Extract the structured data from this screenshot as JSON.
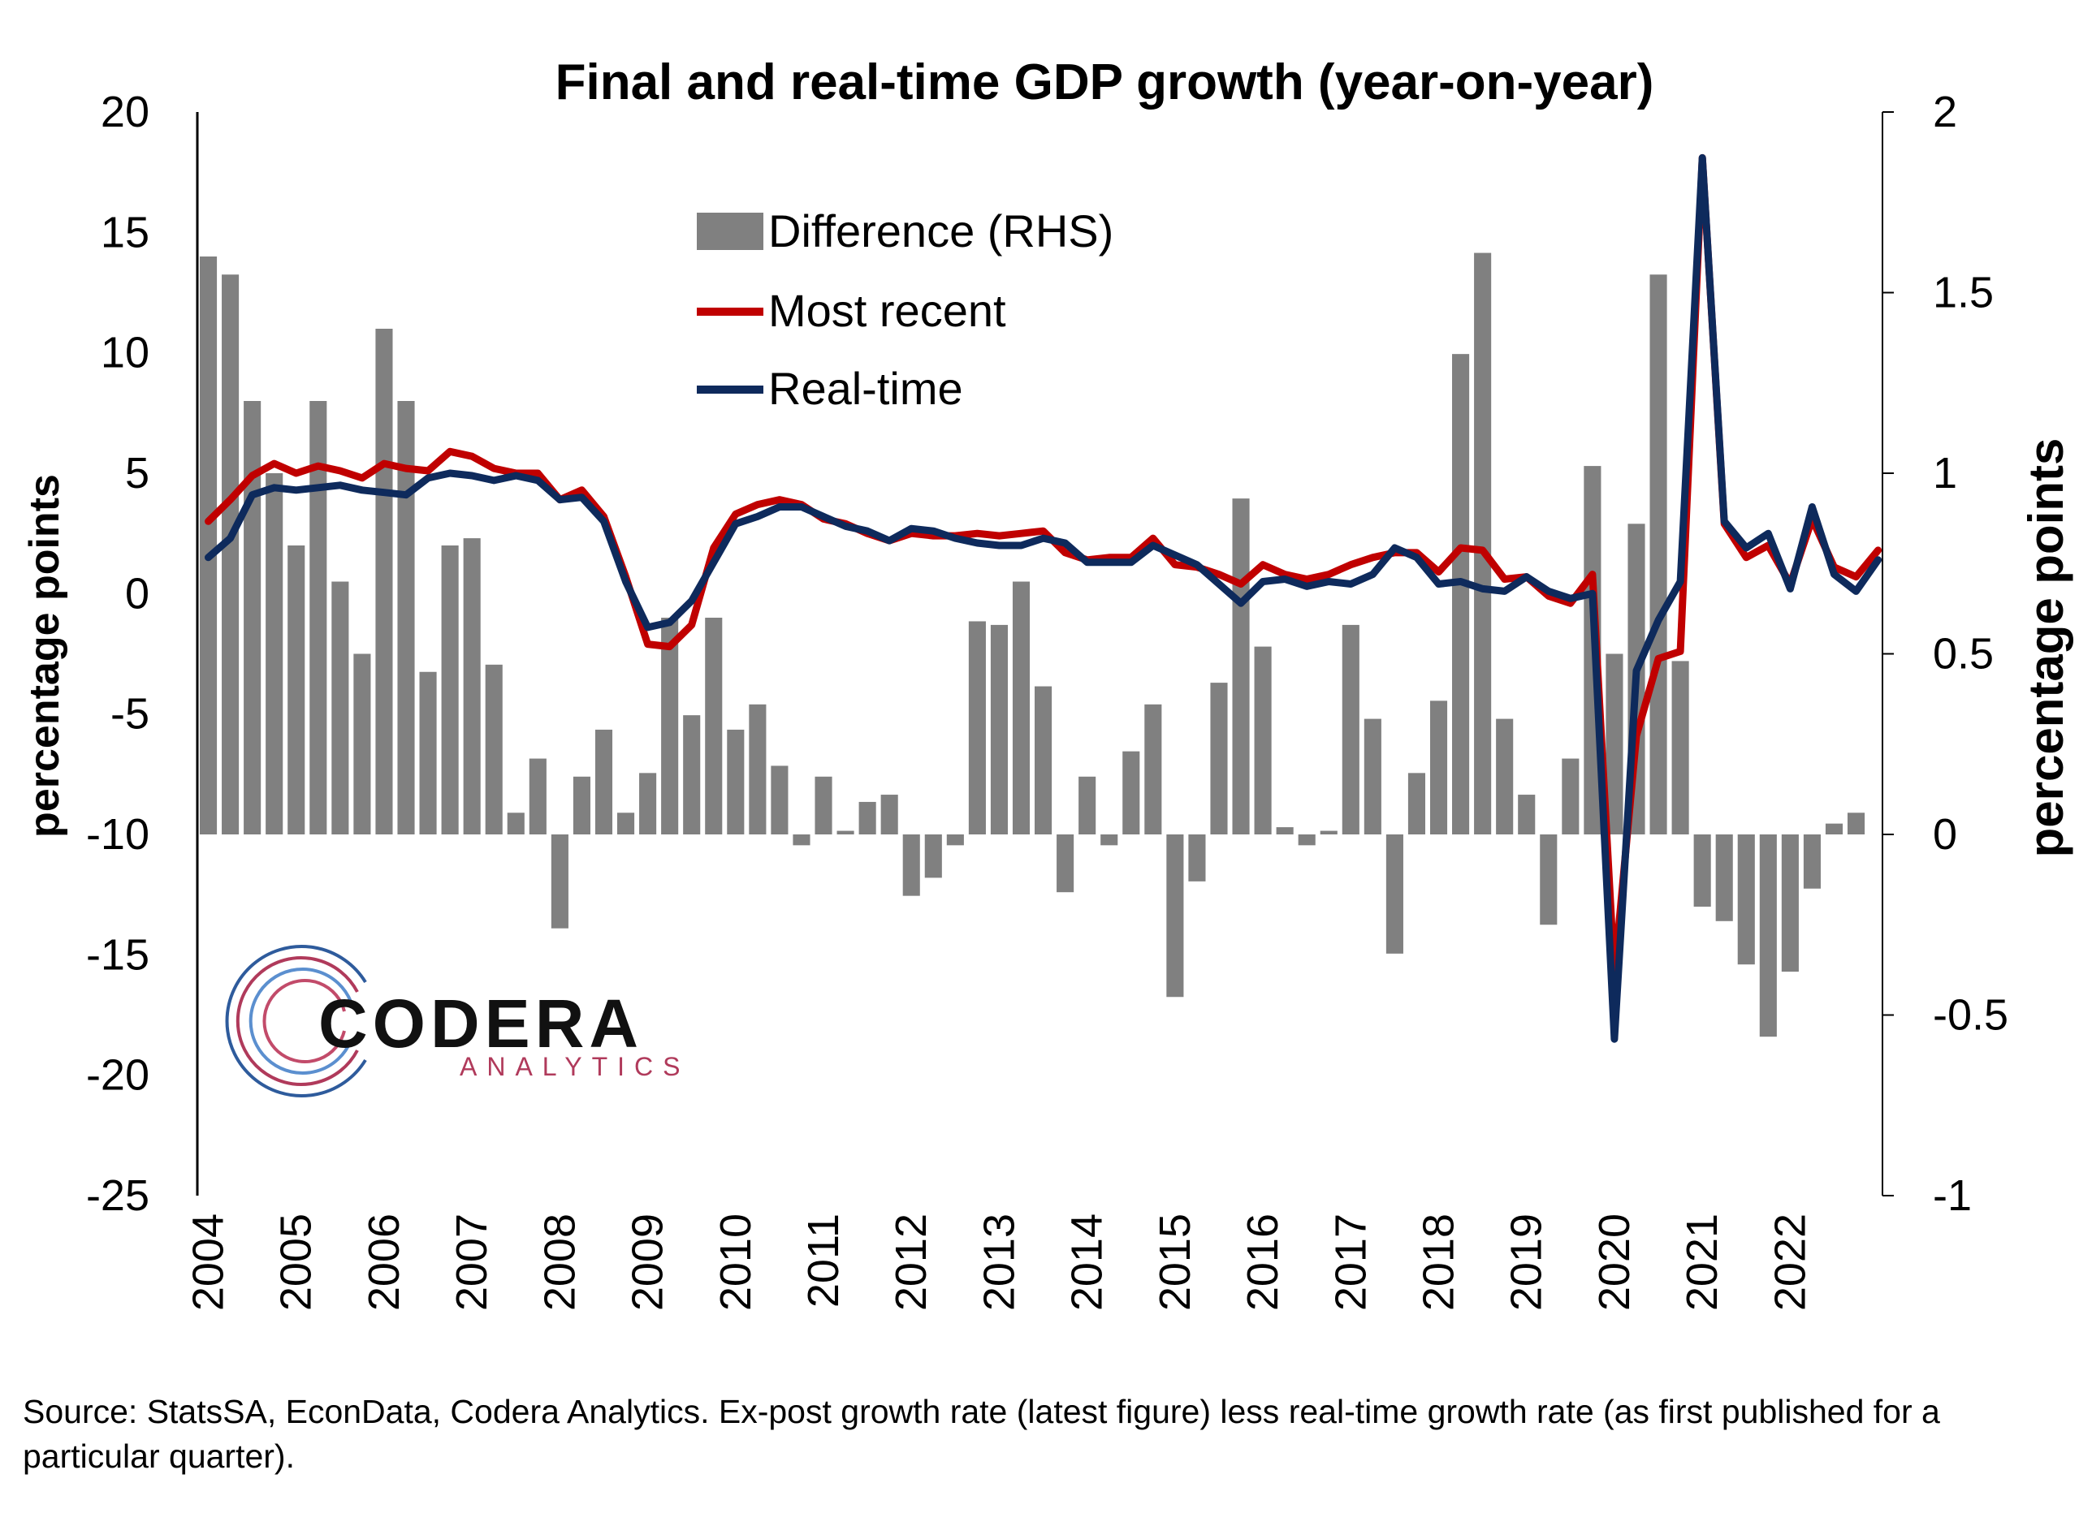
{
  "chart_data": {
    "type": "bar+line",
    "title": "Final and real-time GDP growth (year-on-year)",
    "ylabel": "percentage points",
    "y2label": "percentage points",
    "ylim": [
      -25,
      20
    ],
    "y2lim": [
      -1,
      2
    ],
    "y_ticks": [
      "20",
      "15",
      "10",
      "5",
      "0",
      "-5",
      "-10",
      "-15",
      "-20",
      "-25"
    ],
    "y2_ticks": [
      "2",
      "1.5",
      "1",
      "0.5",
      "0",
      "-0.5",
      "-1"
    ],
    "x_ticks": [
      "2004",
      "2005",
      "2006",
      "2007",
      "2008",
      "2009",
      "2010",
      "2011",
      "2012",
      "2013",
      "2014",
      "2015",
      "2016",
      "2017",
      "2018",
      "2019",
      "2020",
      "2021",
      "2022"
    ],
    "x_start": "2004Q1",
    "legend_placement": "top-center",
    "colors": {
      "difference": "#808080",
      "most_recent": "#c00000",
      "real_time": "#0e2a5c"
    },
    "series": [
      {
        "name": "Difference (RHS)",
        "axis": "right",
        "type": "bar",
        "values": [
          1.6,
          1.55,
          1.2,
          1.0,
          0.8,
          1.2,
          0.7,
          0.5,
          1.4,
          1.2,
          0.45,
          0.8,
          0.82,
          0.47,
          0.06,
          0.21,
          -0.26,
          0.16,
          0.29,
          0.06,
          0.17,
          0.6,
          0.33,
          0.6,
          0.29,
          0.36,
          0.19,
          -0.03,
          0.16,
          0.01,
          0.09,
          0.11,
          -0.17,
          -0.12,
          -0.03,
          0.59,
          0.58,
          0.7,
          0.41,
          -0.16,
          0.16,
          -0.03,
          0.23,
          0.36,
          -0.45,
          -0.13,
          0.42,
          0.93,
          0.52,
          0.02,
          -0.03,
          0.01,
          0.58,
          0.32,
          -0.33,
          0.17,
          0.37,
          1.33,
          1.61,
          0.32,
          0.11,
          -0.25,
          0.21,
          1.02,
          0.5,
          0.86,
          1.55,
          0.48,
          -0.2,
          -0.24,
          -0.36,
          -0.56,
          -0.38,
          -0.15,
          0.03,
          0.06
        ]
      },
      {
        "name": "Most recent",
        "axis": "left",
        "type": "line",
        "values": [
          3.0,
          3.9,
          4.9,
          5.4,
          5.0,
          5.3,
          5.1,
          4.8,
          5.4,
          5.2,
          5.1,
          5.9,
          5.7,
          5.2,
          5.0,
          5.0,
          3.9,
          4.3,
          3.2,
          0.7,
          -2.1,
          -2.2,
          -1.3,
          1.9,
          3.3,
          3.7,
          3.9,
          3.7,
          3.1,
          2.9,
          2.5,
          2.2,
          2.5,
          2.4,
          2.4,
          2.5,
          2.4,
          2.5,
          2.6,
          1.7,
          1.4,
          1.5,
          1.5,
          2.3,
          1.2,
          1.1,
          0.8,
          0.4,
          1.2,
          0.8,
          0.6,
          0.8,
          1.2,
          1.5,
          1.7,
          1.7,
          0.9,
          1.9,
          1.8,
          0.6,
          0.7,
          -0.1,
          -0.4,
          0.8,
          -15.8,
          -5.9,
          -2.7,
          -2.4,
          18.1,
          2.9,
          1.5,
          2.0,
          0.4,
          3.1,
          1.1,
          0.7,
          1.8
        ]
      },
      {
        "name": "Real-time",
        "axis": "left",
        "type": "line",
        "values": [
          1.5,
          2.3,
          4.1,
          4.4,
          4.3,
          4.4,
          4.5,
          4.3,
          4.2,
          4.1,
          4.8,
          5.0,
          4.9,
          4.7,
          4.9,
          4.7,
          3.9,
          4.0,
          3.0,
          0.5,
          -1.4,
          -1.2,
          -0.3,
          1.3,
          2.9,
          3.2,
          3.6,
          3.6,
          3.2,
          2.8,
          2.6,
          2.2,
          2.7,
          2.6,
          2.3,
          2.1,
          2.0,
          2.0,
          2.3,
          2.1,
          1.3,
          1.3,
          1.3,
          2.0,
          1.6,
          1.2,
          0.4,
          -0.4,
          0.5,
          0.6,
          0.3,
          0.5,
          0.4,
          0.8,
          1.9,
          1.5,
          0.4,
          0.5,
          0.2,
          0.1,
          0.7,
          0.1,
          -0.2,
          0.0,
          -18.5,
          -3.2,
          -1.1,
          0.5,
          18.1,
          3.0,
          1.9,
          2.5,
          0.2,
          3.6,
          0.8,
          0.1,
          1.4
        ]
      }
    ]
  },
  "logo": {
    "name": "CODERA",
    "sub": "ANALYTICS"
  },
  "source_note": "Source: StatsSA, EconData, Codera Analytics. Ex-post growth rate (latest figure) less real-time growth rate (as first published for a particular quarter)."
}
